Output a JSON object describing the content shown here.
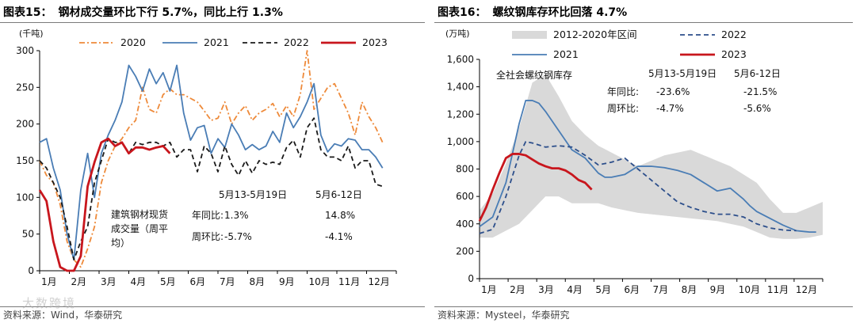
{
  "watermark": "大数跨境",
  "chart_data": [
    {
      "type": "line",
      "figure_label": "图表15：",
      "title": "钢材成交量环比下行 5.7%，同比上行 1.3%",
      "ylabel": "(千吨)",
      "ylim": [
        0,
        300
      ],
      "yticks": [
        "0",
        "50",
        "100",
        "150",
        "200",
        "250",
        "300"
      ],
      "xlim": [
        0,
        52
      ],
      "xticks": [
        "1月",
        "2月",
        "3月",
        "4月",
        "5月",
        "6月",
        "7月",
        "8月",
        "9月",
        "10月",
        "11月",
        "12月"
      ],
      "source": "资料来源：Wind，华泰研究",
      "colors": {
        "2020": "#ee8a3a",
        "2021": "#4a7db5",
        "2022": "#1a1a1a",
        "2023": "#c8161d"
      },
      "series": [
        {
          "name": "2020",
          "style": "dashdot",
          "x": [
            0,
            1,
            2,
            3,
            4,
            5,
            6,
            7,
            8,
            9,
            10,
            11,
            12,
            13,
            14,
            15,
            16,
            17,
            18,
            19,
            20,
            21,
            22,
            23,
            24,
            25,
            26,
            27,
            28,
            29,
            30,
            31,
            32,
            33,
            34,
            35,
            36,
            37,
            38,
            39,
            40,
            41,
            42,
            43,
            44,
            45,
            46,
            47,
            48,
            49,
            50
          ],
          "values": [
            150,
            130,
            120,
            90,
            40,
            15,
            5,
            30,
            60,
            120,
            150,
            170,
            180,
            195,
            205,
            250,
            220,
            215,
            240,
            248,
            240,
            240,
            235,
            230,
            218,
            205,
            208,
            230,
            200,
            215,
            225,
            205,
            215,
            220,
            228,
            210,
            225,
            210,
            240,
            300,
            220,
            235,
            250,
            255,
            235,
            215,
            185,
            230,
            210,
            195,
            175
          ]
        },
        {
          "name": "2021",
          "style": "solid",
          "x": [
            0,
            1,
            2,
            3,
            4,
            5,
            6,
            7,
            8,
            9,
            10,
            11,
            12,
            13,
            14,
            15,
            16,
            17,
            18,
            19,
            20,
            21,
            22,
            23,
            24,
            25,
            26,
            27,
            28,
            29,
            30,
            31,
            32,
            33,
            34,
            35,
            36,
            37,
            38,
            39,
            40,
            41,
            42,
            43,
            44,
            45,
            46,
            47,
            48,
            49,
            50
          ],
          "values": [
            175,
            180,
            140,
            110,
            50,
            15,
            110,
            160,
            100,
            160,
            185,
            205,
            230,
            280,
            265,
            245,
            275,
            255,
            270,
            245,
            280,
            215,
            178,
            195,
            198,
            160,
            180,
            168,
            200,
            185,
            165,
            172,
            165,
            170,
            190,
            175,
            215,
            195,
            210,
            230,
            255,
            185,
            162,
            173,
            170,
            180,
            178,
            165,
            165,
            155,
            140
          ]
        },
        {
          "name": "2022",
          "style": "dash",
          "x": [
            0,
            1,
            2,
            3,
            4,
            5,
            6,
            7,
            8,
            9,
            10,
            11,
            12,
            13,
            14,
            15,
            16,
            17,
            18,
            19,
            20,
            21,
            22,
            23,
            24,
            25,
            26,
            27,
            28,
            29,
            30,
            31,
            32,
            33,
            34,
            35,
            36,
            37,
            38,
            39,
            40,
            41,
            42,
            43,
            44,
            45,
            46,
            47,
            48,
            49,
            50
          ],
          "values": [
            150,
            140,
            120,
            100,
            60,
            15,
            40,
            60,
            120,
            150,
            180,
            175,
            175,
            160,
            175,
            172,
            175,
            175,
            170,
            175,
            155,
            165,
            165,
            135,
            170,
            160,
            135,
            170,
            145,
            130,
            150,
            133,
            150,
            145,
            148,
            145,
            168,
            178,
            155,
            195,
            208,
            165,
            155,
            155,
            150,
            170,
            140,
            150,
            150,
            118,
            115
          ]
        },
        {
          "name": "2023",
          "style": "solid",
          "x": [
            0,
            1,
            2,
            3,
            4,
            5,
            6,
            7,
            8,
            9,
            10,
            11,
            12,
            13,
            14,
            15,
            16,
            17,
            18,
            19
          ],
          "values": [
            110,
            95,
            40,
            5,
            0,
            0,
            20,
            115,
            148,
            175,
            180,
            170,
            175,
            160,
            168,
            168,
            165,
            168,
            170,
            160
          ]
        }
      ],
      "table": {
        "label": "建筑钢材现货成交量（周平均）",
        "headers": [
          "5月13-5月19日",
          "5月6-12日"
        ],
        "rows": [
          {
            "label": "年同比:",
            "values": [
              "1.3%",
              "14.8%"
            ]
          },
          {
            "label": "周环比:",
            "values": [
              "-5.7%",
              "-4.1%"
            ]
          }
        ]
      }
    },
    {
      "type": "line",
      "figure_label": "图表16：",
      "title": "螺纹钢库存环比回落 4.7%",
      "ylabel": "(万吨)",
      "ylim": [
        0,
        1600
      ],
      "yticks": [
        "0",
        "200",
        "400",
        "600",
        "800",
        "1,000",
        "1,200",
        "1,400",
        "1,600"
      ],
      "xlim": [
        0,
        52
      ],
      "xticks": [
        "1月",
        "2月",
        "3月",
        "4月",
        "5月",
        "6月",
        "7月",
        "8月",
        "9月",
        "10月",
        "11月",
        "12月"
      ],
      "source": "资料来源：Mysteel，华泰研究",
      "colors": {
        "band": "#d9d9d9",
        "2021": "#4a7db5",
        "2022": "#2d4f8b",
        "2023": "#c8161d"
      },
      "band": {
        "name": "2012-2020年区间",
        "x": [
          0,
          2,
          4,
          6,
          8,
          10,
          12,
          14,
          16,
          18,
          20,
          22,
          24,
          26,
          28,
          30,
          32,
          34,
          36,
          38,
          40,
          42,
          44,
          46,
          48,
          50,
          52
        ],
        "low": [
          300,
          300,
          350,
          400,
          500,
          600,
          600,
          550,
          550,
          550,
          520,
          500,
          480,
          470,
          460,
          450,
          440,
          430,
          420,
          400,
          380,
          340,
          300,
          290,
          290,
          300,
          320
        ],
        "high": [
          500,
          620,
          840,
          1100,
          1430,
          1490,
          1330,
          1150,
          1050,
          970,
          920,
          870,
          820,
          860,
          900,
          920,
          940,
          900,
          860,
          820,
          760,
          700,
          580,
          480,
          480,
          520,
          560
        ]
      },
      "series": [
        {
          "name": "2021",
          "style": "solid",
          "x": [
            0,
            2,
            4,
            6,
            7,
            8,
            9,
            10,
            12,
            14,
            16,
            18,
            19,
            20,
            22,
            24,
            26,
            28,
            30,
            32,
            34,
            36,
            38,
            40,
            41,
            42,
            44,
            46,
            48,
            50,
            51
          ],
          "values": [
            380,
            450,
            700,
            1130,
            1300,
            1300,
            1280,
            1220,
            1080,
            940,
            880,
            770,
            740,
            740,
            760,
            820,
            820,
            810,
            790,
            760,
            700,
            640,
            660,
            580,
            530,
            490,
            440,
            390,
            350,
            340,
            340
          ]
        },
        {
          "name": "2022",
          "style": "dash",
          "x": [
            0,
            2,
            4,
            6,
            7,
            8,
            10,
            12,
            14,
            16,
            18,
            20,
            22,
            24,
            26,
            28,
            30,
            32,
            34,
            36,
            38,
            40,
            42,
            44,
            46,
            48
          ],
          "values": [
            330,
            360,
            600,
            900,
            1000,
            990,
            960,
            970,
            960,
            900,
            830,
            850,
            880,
            800,
            720,
            640,
            560,
            520,
            490,
            470,
            470,
            450,
            400,
            370,
            355,
            350
          ]
        },
        {
          "name": "2023",
          "style": "solid",
          "x": [
            0,
            1,
            2,
            3,
            4,
            5,
            6,
            7,
            8,
            9,
            10,
            11,
            12,
            13,
            14,
            15,
            16,
            17
          ],
          "values": [
            420,
            520,
            650,
            770,
            880,
            910,
            910,
            900,
            870,
            840,
            820,
            805,
            805,
            790,
            760,
            720,
            700,
            650
          ]
        }
      ],
      "table": {
        "label": "全社会螺纹钢库存",
        "headers": [
          "5月13-5月19日",
          "5月6-12日"
        ],
        "rows": [
          {
            "label": "年同比:",
            "values": [
              "-23.6%",
              "-21.5%"
            ]
          },
          {
            "label": "周环比:",
            "values": [
              "-4.7%",
              "-5.6%"
            ]
          }
        ]
      }
    }
  ]
}
